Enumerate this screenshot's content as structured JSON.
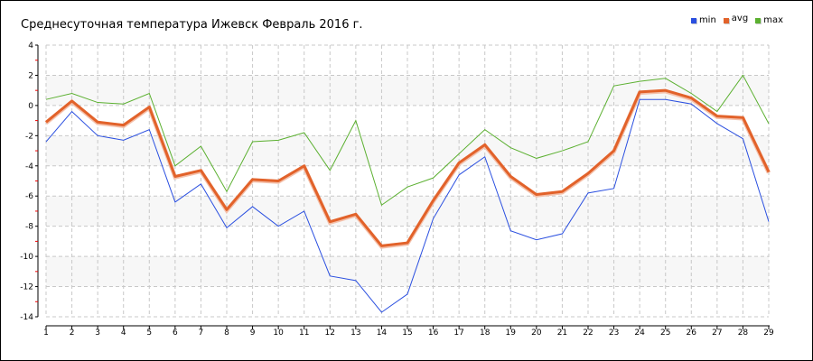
{
  "chart_data": {
    "type": "line",
    "title": "Среднесуточная температура Ижевск  Февраль 2016 г.",
    "xlabel": "",
    "ylabel": "",
    "x": [
      1,
      2,
      3,
      4,
      5,
      6,
      7,
      8,
      9,
      10,
      11,
      12,
      13,
      14,
      15,
      16,
      17,
      18,
      19,
      20,
      21,
      22,
      23,
      24,
      25,
      26,
      27,
      28,
      29
    ],
    "ylim": [
      -14,
      4
    ],
    "yticks": [
      4,
      2,
      0,
      -2,
      -4,
      -6,
      -8,
      -10,
      -12,
      -14
    ],
    "grid": true,
    "legend_position": "top-right",
    "series": [
      {
        "name": "min",
        "color": "#2a4fe0",
        "values": [
          -2.4,
          -0.4,
          -2.0,
          -2.3,
          -1.6,
          -6.4,
          -5.2,
          -8.1,
          -6.7,
          -8.0,
          -7.0,
          -11.3,
          -11.6,
          -13.7,
          -12.5,
          -7.5,
          -4.6,
          -3.4,
          -8.3,
          -8.9,
          -8.5,
          -5.8,
          -5.5,
          0.4,
          0.4,
          0.1,
          -1.2,
          -2.2,
          -7.7
        ]
      },
      {
        "name": "avg",
        "color": "#e2622a",
        "values": [
          -1.1,
          0.3,
          -1.1,
          -1.3,
          -0.1,
          -4.7,
          -4.3,
          -6.9,
          -4.9,
          -5.0,
          -4.0,
          -7.7,
          -7.2,
          -9.3,
          -9.1,
          -6.3,
          -3.8,
          -2.6,
          -4.7,
          -5.9,
          -5.7,
          -4.5,
          -3.0,
          0.9,
          1.0,
          0.5,
          -0.7,
          -0.8,
          -4.4
        ]
      },
      {
        "name": "max",
        "color": "#5bb030",
        "values": [
          0.4,
          0.8,
          0.2,
          0.1,
          0.8,
          -4.0,
          -2.7,
          -5.7,
          -2.4,
          -2.3,
          -1.8,
          -4.3,
          -1.0,
          -6.6,
          -5.4,
          -4.8,
          -3.2,
          -1.6,
          -2.8,
          -3.5,
          -3.0,
          -2.4,
          1.3,
          1.6,
          1.8,
          0.8,
          -0.4,
          2.0,
          -1.2
        ]
      }
    ]
  }
}
